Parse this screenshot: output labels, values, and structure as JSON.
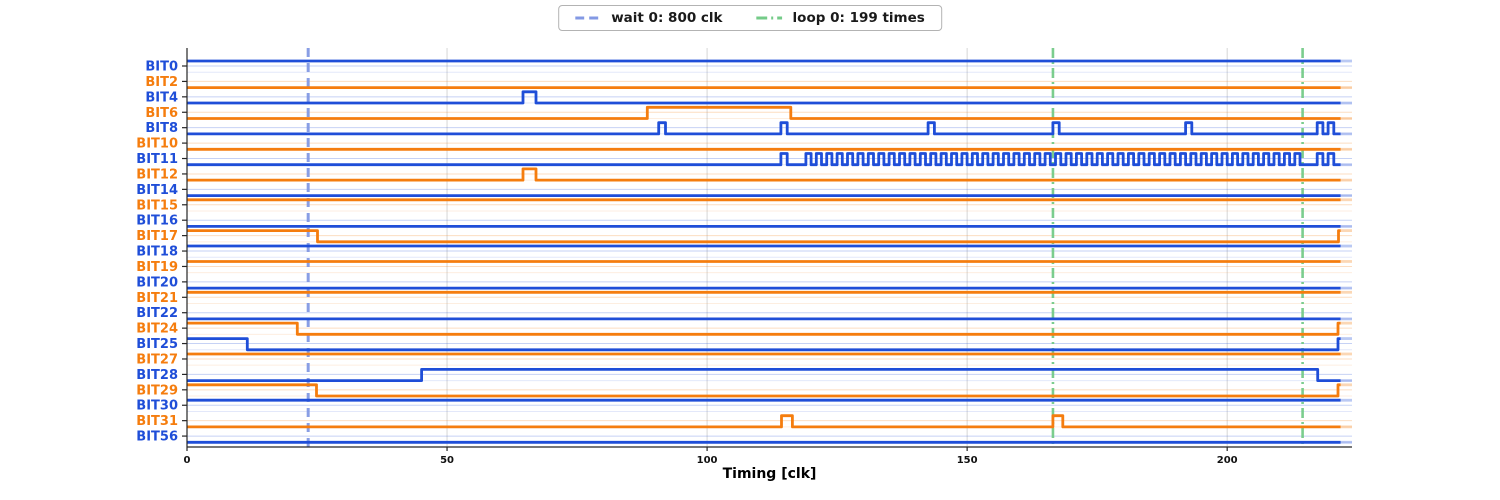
{
  "legend": {
    "items": [
      {
        "id": "wait",
        "label": "wait 0: 800 clk",
        "color": "#8399e4",
        "dash": "dashed"
      },
      {
        "id": "loop",
        "label": "loop 0: 199 times",
        "color": "#74cb88",
        "dash": "dashdot"
      }
    ]
  },
  "chart_data": {
    "type": "line",
    "variant": "digital-timing",
    "title": "",
    "xlabel": "Timing [clk]",
    "ylabel": "",
    "xlim": [
      0,
      224
    ],
    "xticks": [
      0,
      50,
      100,
      150,
      200
    ],
    "grid": true,
    "legend_position": "top-center",
    "data_end": 221.8,
    "fade_end": 224,
    "colors": {
      "blue": "#1f4ed8",
      "orange": "#f57d0e",
      "grid": "#d6d6d6",
      "axis": "#262626"
    },
    "markers": {
      "wait": {
        "label": "wait 0: 800 clk",
        "x": 23.3,
        "color": "#8399e4",
        "style": "dashed"
      },
      "loops": {
        "label": "loop 0: 199 times",
        "xs": [
          166.5,
          214.5
        ],
        "color": "#74cb88",
        "style": "dashdot"
      }
    },
    "signals": [
      {
        "name": "BIT0",
        "color": "blue",
        "initial": 1,
        "edges": []
      },
      {
        "name": "BIT2",
        "color": "orange",
        "initial": 0,
        "edges": []
      },
      {
        "name": "BIT4",
        "color": "blue",
        "initial": 0,
        "edges": [
          [
            64.6,
            1
          ],
          [
            67.1,
            0
          ]
        ]
      },
      {
        "name": "BIT6",
        "color": "orange",
        "initial": 0,
        "edges": [
          [
            88.5,
            1
          ],
          [
            116.1,
            0
          ]
        ]
      },
      {
        "name": "BIT8",
        "color": "blue",
        "initial": 0,
        "edges": [
          [
            90.7,
            1
          ],
          [
            92,
            0
          ],
          [
            114.2,
            1
          ],
          [
            115.4,
            0
          ],
          [
            142.5,
            1
          ],
          [
            143.7,
            0
          ],
          [
            166.5,
            1
          ],
          [
            167.7,
            0
          ],
          [
            192,
            1
          ],
          [
            193.2,
            0
          ],
          [
            217.3,
            1
          ],
          [
            218.4,
            0
          ],
          [
            219.4,
            1
          ],
          [
            220.5,
            0
          ]
        ]
      },
      {
        "name": "BIT10",
        "color": "orange",
        "initial": 0,
        "edges": []
      },
      {
        "name": "BIT11",
        "color": "blue",
        "initial": 0,
        "edges": [
          [
            114.2,
            1
          ],
          [
            115.4,
            0
          ],
          [
            217.3,
            1
          ],
          [
            218.4,
            0
          ],
          [
            219.4,
            1
          ],
          [
            220.5,
            0
          ]
        ],
        "toggle": {
          "start": 119,
          "end": 214.5,
          "period": 2
        }
      },
      {
        "name": "BIT12",
        "color": "orange",
        "initial": 0,
        "edges": [
          [
            64.6,
            1
          ],
          [
            67.1,
            0
          ]
        ]
      },
      {
        "name": "BIT14",
        "color": "blue",
        "initial": 0,
        "edges": []
      },
      {
        "name": "BIT15",
        "color": "orange",
        "initial": 1,
        "edges": []
      },
      {
        "name": "BIT16",
        "color": "blue",
        "initial": 0,
        "edges": []
      },
      {
        "name": "BIT17",
        "color": "orange",
        "initial": 1,
        "edges": [
          [
            25.1,
            0
          ],
          [
            221.4,
            1
          ]
        ]
      },
      {
        "name": "BIT18",
        "color": "blue",
        "initial": 1,
        "edges": []
      },
      {
        "name": "BIT19",
        "color": "orange",
        "initial": 1,
        "edges": []
      },
      {
        "name": "BIT20",
        "color": "blue",
        "initial": 0,
        "edges": []
      },
      {
        "name": "BIT21",
        "color": "orange",
        "initial": 1,
        "edges": []
      },
      {
        "name": "BIT22",
        "color": "blue",
        "initial": 0,
        "edges": []
      },
      {
        "name": "BIT24",
        "color": "orange",
        "initial": 1,
        "edges": [
          [
            21.2,
            0
          ],
          [
            221.3,
            1
          ]
        ]
      },
      {
        "name": "BIT25",
        "color": "blue",
        "initial": 1,
        "edges": [
          [
            11.6,
            0
          ],
          [
            221.3,
            1
          ]
        ]
      },
      {
        "name": "BIT27",
        "color": "orange",
        "initial": 1,
        "edges": []
      },
      {
        "name": "BIT28",
        "color": "blue",
        "initial": 0,
        "edges": [
          [
            45.1,
            1
          ],
          [
            217.4,
            0
          ]
        ]
      },
      {
        "name": "BIT29",
        "color": "orange",
        "initial": 1,
        "edges": [
          [
            24.9,
            0
          ],
          [
            221.3,
            1
          ]
        ]
      },
      {
        "name": "BIT30",
        "color": "blue",
        "initial": 1,
        "edges": []
      },
      {
        "name": "BIT31",
        "color": "orange",
        "initial": 0,
        "edges": [
          [
            114.3,
            1
          ],
          [
            116.4,
            0
          ],
          [
            166.5,
            1
          ],
          [
            168.4,
            0
          ]
        ]
      },
      {
        "name": "BIT56",
        "color": "blue",
        "initial": 0,
        "edges": []
      }
    ]
  }
}
